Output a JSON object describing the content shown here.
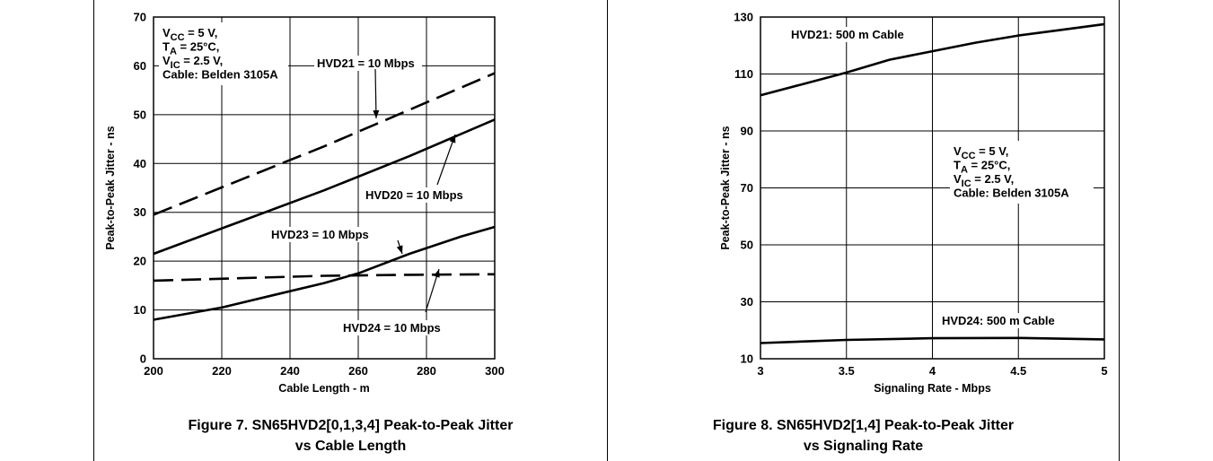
{
  "figures": [
    {
      "caption_line1": "Figure 7. SN65HVD2[0,1,3,4] Peak-to-Peak Jitter",
      "caption_line2": "vs Cable Length"
    },
    {
      "caption_line1": "Figure 8. SN65HVD2[1,4] Peak-to-Peak Jitter",
      "caption_line2": "vs Signaling Rate"
    }
  ],
  "chart_data": [
    {
      "type": "line",
      "xlabel": "Cable Length - m",
      "ylabel": "Peak-to-Peak Jitter - ns",
      "xlim": [
        200,
        300
      ],
      "ylim": [
        0,
        70
      ],
      "xticks": [
        "200",
        "220",
        "240",
        "260",
        "280",
        "300"
      ],
      "yticks": [
        "0",
        "10",
        "20",
        "30",
        "40",
        "50",
        "60",
        "70"
      ],
      "grid": true,
      "conditions": [
        "V_CC = 5 V,",
        "T_A = 25°C,",
        "V_IC = 2.5 V,",
        "Cable: Belden 3105A"
      ],
      "series": [
        {
          "name": "HVD21 = 10 Mbps",
          "style": "dashed",
          "x": [
            200,
            225,
            250,
            275,
            300
          ],
          "y": [
            29.5,
            36.5,
            43.5,
            51,
            58.5
          ]
        },
        {
          "name": "HVD20 = 10 Mbps",
          "style": "solid",
          "x": [
            200,
            225,
            250,
            275,
            300
          ],
          "y": [
            21.5,
            28,
            34.5,
            41.5,
            49
          ]
        },
        {
          "name": "HVD23 = 10 Mbps",
          "style": "solid",
          "x": [
            200,
            220,
            235,
            250,
            260,
            275,
            290,
            300
          ],
          "y": [
            8,
            10.5,
            13,
            15.5,
            17.5,
            21.5,
            25,
            27
          ]
        },
        {
          "name": "HVD24 = 10 Mbps",
          "style": "dashed",
          "x": [
            200,
            225,
            250,
            275,
            300
          ],
          "y": [
            16,
            16.5,
            17,
            17.2,
            17.3
          ]
        }
      ]
    },
    {
      "type": "line",
      "xlabel": "Signaling Rate - Mbps",
      "ylabel": "Peak-to-Peak Jitter - ns",
      "xlim": [
        3,
        5
      ],
      "ylim": [
        10,
        130
      ],
      "xticks": [
        "3",
        "3.5",
        "4",
        "4.5",
        "5"
      ],
      "yticks": [
        "10",
        "30",
        "50",
        "70",
        "90",
        "110",
        "130"
      ],
      "grid": true,
      "conditions": [
        "V_CC = 5 V,",
        "T_A = 25°C,",
        "V_IC = 2.5 V,",
        "Cable: Belden 3105A"
      ],
      "series": [
        {
          "name": "HVD21: 500 m Cable",
          "style": "solid",
          "x": [
            3,
            3.25,
            3.5,
            3.75,
            4,
            4.25,
            4.5,
            4.75,
            5
          ],
          "y": [
            102.5,
            106.5,
            110.5,
            115,
            118,
            121,
            123.5,
            125.5,
            127.5
          ]
        },
        {
          "name": "HVD24: 500 m Cable",
          "style": "solid",
          "x": [
            3,
            3.5,
            4,
            4.5,
            5
          ],
          "y": [
            15.5,
            16.6,
            17.2,
            17.3,
            16.8
          ]
        }
      ]
    }
  ]
}
